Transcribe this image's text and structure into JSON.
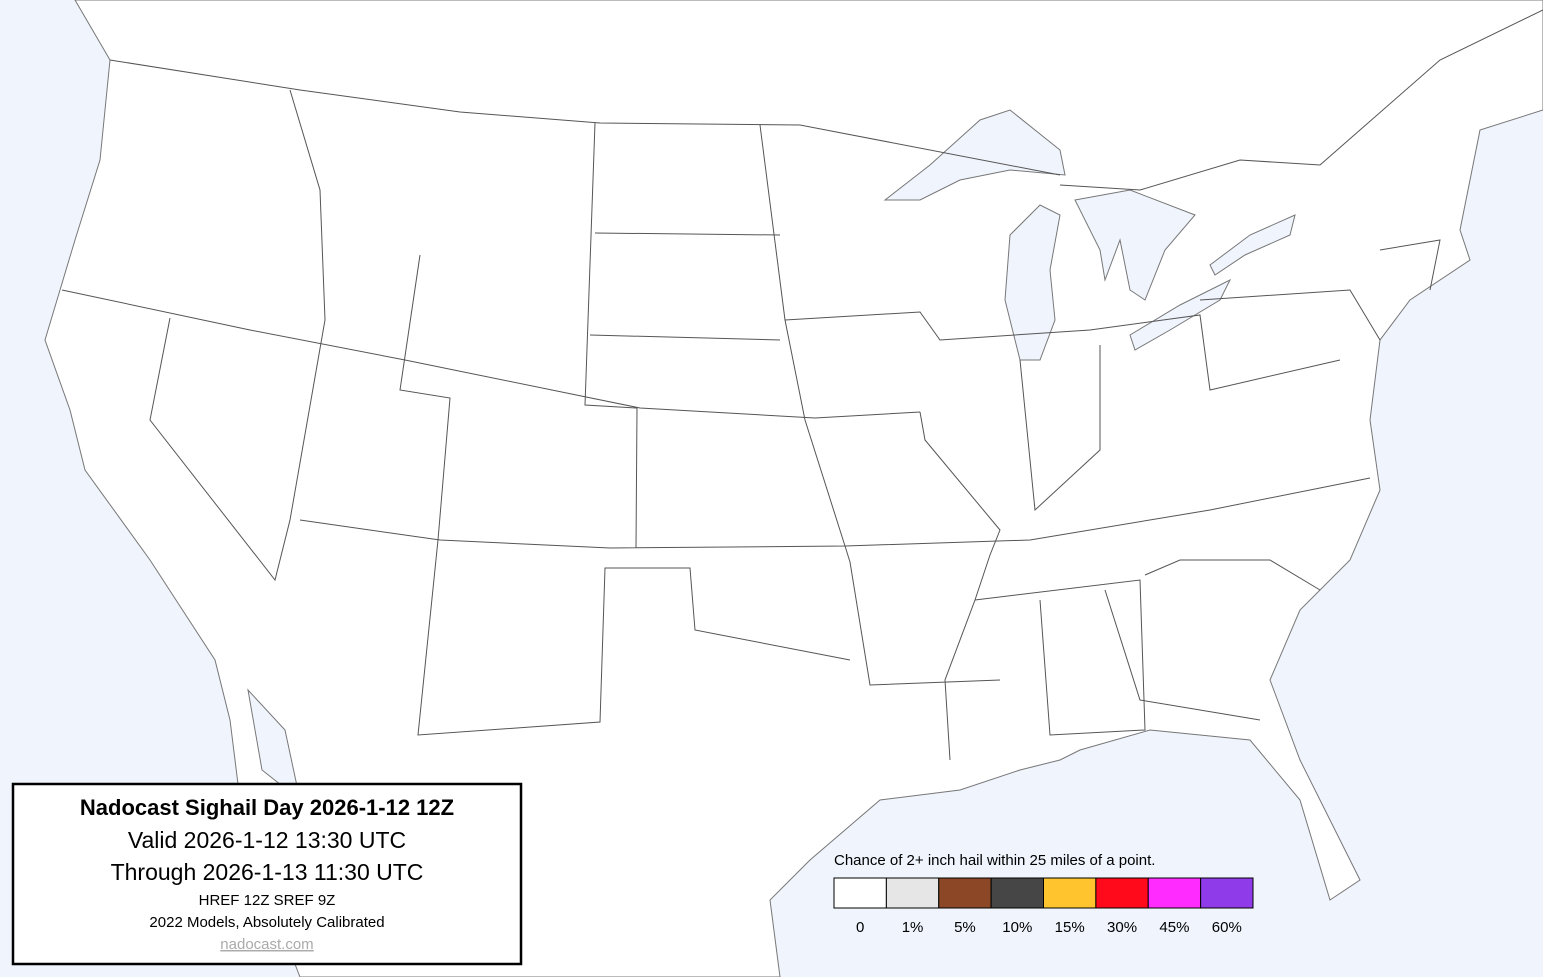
{
  "info_box": {
    "title": "Nadocast Sighail Day 2026-1-12 12Z",
    "valid": "Valid 2026-1-12 13:30 UTC",
    "through": "Through 2026-1-13 11:30 UTC",
    "models": "HREF 12Z SREF 9Z",
    "calibration": "2022 Models, Absolutely Calibrated",
    "link": "nadocast.com"
  },
  "legend": {
    "caption": "Chance of 2+ inch hail within 25 miles of a point.",
    "items": [
      {
        "label": "0",
        "color": "#ffffff"
      },
      {
        "label": "1%",
        "color": "#e6e6e6"
      },
      {
        "label": "5%",
        "color": "#8b4726"
      },
      {
        "label": "10%",
        "color": "#464646"
      },
      {
        "label": "15%",
        "color": "#ffc42e"
      },
      {
        "label": "30%",
        "color": "#ff0a1a"
      },
      {
        "label": "45%",
        "color": "#ff2bff"
      },
      {
        "label": "60%",
        "color": "#8f3bea"
      }
    ]
  }
}
